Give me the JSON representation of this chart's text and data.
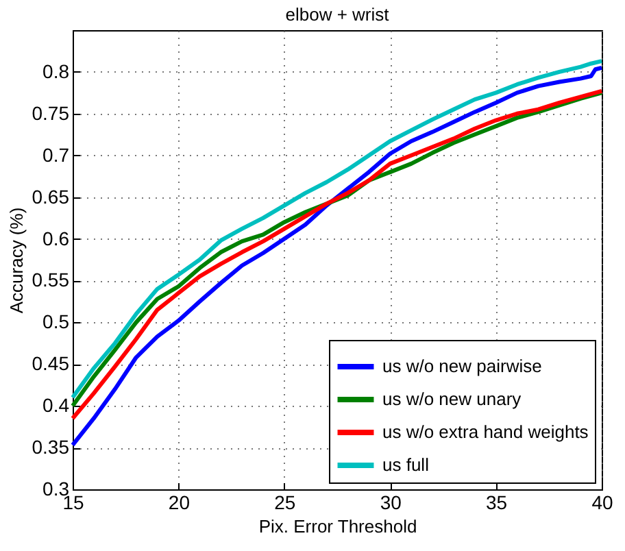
{
  "chart_data": {
    "type": "line",
    "title": "elbow + wrist",
    "xlabel": "Pix. Error Threshold",
    "ylabel": "Accuracy (%)",
    "xlim": [
      15,
      40
    ],
    "xticks": [
      15,
      20,
      25,
      30,
      35,
      40
    ],
    "ylim": [
      0.3,
      0.85
    ],
    "yticks": [
      0.3,
      0.35,
      0.4,
      0.45,
      0.5,
      0.55,
      0.6,
      0.65,
      0.7,
      0.75,
      0.8
    ],
    "grid": true,
    "legend": "bottom right",
    "marker": "none",
    "line_style": "solid",
    "series": [
      {
        "name": "us w/o new pairwise",
        "color": "#0000ff",
        "x": [
          15,
          16,
          17,
          18,
          19,
          20,
          21,
          22,
          23,
          24,
          25,
          26,
          27,
          28,
          29,
          30,
          31,
          32,
          33,
          34,
          35,
          36,
          37,
          38,
          39,
          39.5,
          39.7,
          40
        ],
        "values": [
          0.353,
          0.385,
          0.42,
          0.458,
          0.483,
          0.502,
          0.525,
          0.547,
          0.568,
          0.583,
          0.6,
          0.617,
          0.64,
          0.66,
          0.68,
          0.702,
          0.717,
          0.728,
          0.74,
          0.752,
          0.763,
          0.775,
          0.783,
          0.788,
          0.792,
          0.795,
          0.803,
          0.805
        ]
      },
      {
        "name": "us w/o new unary",
        "color": "#008000",
        "x": [
          15,
          16,
          17,
          18,
          19,
          20,
          21,
          22,
          23,
          24,
          25,
          26,
          27,
          28,
          29,
          30,
          31,
          32,
          33,
          34,
          35,
          36,
          37,
          38,
          39,
          40
        ],
        "values": [
          0.4,
          0.435,
          0.467,
          0.5,
          0.528,
          0.543,
          0.565,
          0.584,
          0.597,
          0.605,
          0.62,
          0.632,
          0.642,
          0.652,
          0.67,
          0.68,
          0.69,
          0.703,
          0.715,
          0.725,
          0.735,
          0.745,
          0.752,
          0.76,
          0.768,
          0.775
        ]
      },
      {
        "name": "us w/o extra hand weights",
        "color": "#ff0000",
        "x": [
          15,
          16,
          17,
          18,
          19,
          20,
          21,
          22,
          23,
          24,
          25,
          26,
          27,
          28,
          29,
          30,
          31,
          32,
          33,
          34,
          35,
          36,
          37,
          38,
          39,
          40
        ],
        "values": [
          0.385,
          0.415,
          0.447,
          0.48,
          0.515,
          0.535,
          0.555,
          0.57,
          0.584,
          0.597,
          0.612,
          0.627,
          0.642,
          0.655,
          0.67,
          0.69,
          0.7,
          0.71,
          0.72,
          0.732,
          0.742,
          0.75,
          0.755,
          0.763,
          0.77,
          0.777
        ]
      },
      {
        "name": "us full",
        "color": "#00bfbf",
        "x": [
          15,
          16,
          17,
          18,
          19,
          20,
          21,
          22,
          23,
          24,
          25,
          26,
          27,
          28,
          29,
          30,
          31,
          32,
          33,
          34,
          35,
          36,
          37,
          38,
          39,
          39.5,
          40
        ],
        "values": [
          0.41,
          0.445,
          0.475,
          0.51,
          0.54,
          0.557,
          0.575,
          0.598,
          0.612,
          0.625,
          0.64,
          0.655,
          0.668,
          0.683,
          0.7,
          0.717,
          0.73,
          0.743,
          0.755,
          0.767,
          0.775,
          0.785,
          0.793,
          0.8,
          0.806,
          0.81,
          0.813
        ]
      }
    ]
  }
}
